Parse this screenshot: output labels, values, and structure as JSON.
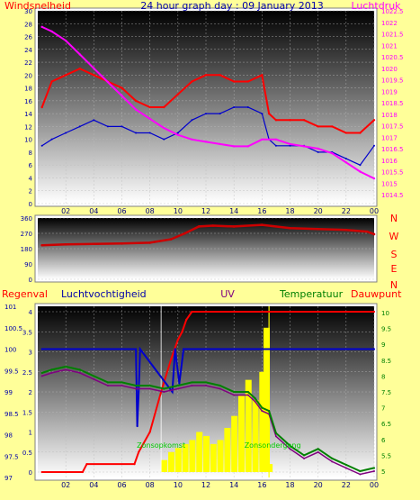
{
  "colors": {
    "background": "#ffff99",
    "windspeed": "#ff0000",
    "gust": "#0000cc",
    "pressure": "#ff00ff",
    "direction": "#cc0000",
    "rain": "#ff0000",
    "humidity": "#0000cc",
    "temperature": "#008000",
    "dewpoint": "#800080",
    "uv": "#ffff00",
    "title": "#0000aa"
  },
  "chart_data": [
    {
      "type": "line",
      "title": "24 hour graph day : 09 January 2013",
      "left_label": "Windsnelheid",
      "right_label": "Luchtdruk",
      "x_ticks": [
        "02",
        "04",
        "06",
        "08",
        "10",
        "12",
        "14",
        "16",
        "18",
        "20",
        "22",
        "00"
      ],
      "y_left_ticks": [
        "30",
        "28",
        "26",
        "24",
        "22",
        "20",
        "18",
        "16",
        "14",
        "12",
        "10",
        "8",
        "6",
        "4",
        "2",
        "0"
      ],
      "y_right_ticks": [
        "1022.5",
        "1022",
        "1021.5",
        "1021",
        "1020.5",
        "1020",
        "1019.5",
        "1019",
        "1018.5",
        "1018",
        "1017.5",
        "1017",
        "1016.5",
        "1016",
        "1015.5",
        "1015",
        "1014.5"
      ],
      "ylim_left": [
        0,
        30
      ],
      "ylim_right": [
        1014.5,
        1022.5
      ],
      "series": [
        {
          "key": "wind",
          "hours": [
            0.3,
            1,
            2,
            3,
            4,
            5,
            6,
            7,
            8,
            9,
            10,
            11,
            12,
            13,
            14,
            15,
            16,
            16.5,
            17,
            18,
            19,
            20,
            21,
            22,
            23,
            24
          ],
          "values": [
            15,
            19,
            20,
            21,
            20,
            19,
            18,
            16,
            15,
            15,
            17,
            19,
            20,
            20,
            19,
            19,
            20,
            14,
            13,
            13,
            13,
            12,
            12,
            11,
            11,
            13
          ]
        },
        {
          "key": "gust",
          "hours": [
            0.3,
            1,
            2,
            3,
            4,
            5,
            6,
            7,
            8,
            9,
            10,
            11,
            12,
            13,
            14,
            15,
            16,
            16.5,
            17,
            18,
            19,
            20,
            21,
            22,
            23,
            24
          ],
          "values": [
            9,
            10,
            11,
            12,
            13,
            12,
            12,
            11,
            11,
            10,
            11,
            13,
            14,
            14,
            15,
            15,
            14,
            10,
            9,
            9,
            9,
            8,
            8,
            7,
            6,
            9
          ]
        },
        {
          "key": "pressure",
          "hours": [
            0.3,
            1,
            2,
            3,
            4,
            5,
            6,
            7,
            8,
            9,
            10,
            11,
            12,
            13,
            14,
            15,
            16,
            17,
            18,
            19,
            20,
            21,
            22,
            23,
            24
          ],
          "values": [
            1021.8,
            1021.6,
            1021.2,
            1020.6,
            1020.0,
            1019.4,
            1018.8,
            1018.2,
            1017.8,
            1017.4,
            1017.1,
            1016.9,
            1016.8,
            1016.7,
            1016.6,
            1016.6,
            1016.9,
            1016.9,
            1016.7,
            1016.6,
            1016.5,
            1016.3,
            1015.9,
            1015.5,
            1015.2
          ]
        }
      ]
    },
    {
      "type": "line",
      "right_labels": [
        "N",
        "W",
        "S",
        "E",
        "N"
      ],
      "y_ticks": [
        "360",
        "270",
        "180",
        "90",
        "0"
      ],
      "ylim": [
        0,
        360
      ],
      "series": [
        {
          "key": "direction",
          "hours": [
            0.3,
            2,
            4,
            6,
            8,
            9.5,
            10.5,
            11.5,
            12.5,
            14,
            16,
            18,
            20,
            22,
            23.5,
            24
          ],
          "values": [
            200,
            205,
            208,
            210,
            215,
            235,
            270,
            310,
            315,
            310,
            320,
            300,
            295,
            290,
            280,
            265
          ]
        }
      ]
    },
    {
      "type": "line",
      "labels": {
        "rain": "Regenval",
        "humidity": "Luchtvochtigheid",
        "uv": "UV",
        "temperature": "Temperatuur",
        "dewpoint": "Dauwpunt"
      },
      "y_left_ticks": [
        "101",
        "100.5",
        "100",
        "99.5",
        "99",
        "98.5",
        "98",
        "97.5",
        "97"
      ],
      "y_rain_ticks": [
        "4",
        "3.5",
        "3",
        "2.5",
        "2",
        "1.5",
        "1",
        "0.5",
        "0"
      ],
      "y_right_ticks": [
        "10",
        "9.5",
        "9",
        "8.5",
        "8",
        "7.5",
        "7",
        "6.5",
        "6",
        "5.5",
        "5"
      ],
      "ylim_rain": [
        0,
        4
      ],
      "ylim_humidity": [
        97,
        101
      ],
      "ylim_temperature": [
        4.8,
        10.2
      ],
      "sunrise_label": "Zonsopkomst",
      "sunset_label": "Zonsondergang",
      "sunrise_hour": 8.8,
      "sunset_hour": 16.5,
      "series": [
        {
          "key": "rain",
          "hours": [
            0.3,
            3.2,
            3.5,
            6.9,
            7.2,
            8.0,
            8.8,
            9.5,
            10.0,
            10.3,
            10.6,
            11.0,
            24
          ],
          "values": [
            0,
            0,
            0.2,
            0.2,
            0.5,
            1.0,
            2.0,
            2.8,
            3.3,
            3.5,
            3.8,
            4.0,
            4.0
          ]
        },
        {
          "key": "humidity",
          "hours": [
            0.3,
            7.0,
            7.1,
            7.2,
            7.3,
            9.6,
            9.8,
            10.1,
            10.4,
            10.6,
            24
          ],
          "values": [
            100,
            100,
            98.2,
            99,
            100,
            99,
            100,
            99.2,
            100,
            100,
            100
          ]
        },
        {
          "key": "temperature",
          "hours": [
            0.3,
            1,
            2,
            3,
            4,
            5,
            6,
            7,
            8,
            9,
            10,
            11,
            12,
            13,
            14,
            15,
            15.5,
            16,
            16.5,
            17,
            18,
            19,
            20,
            21,
            22,
            23,
            24
          ],
          "values": [
            8.1,
            8.2,
            8.3,
            8.2,
            8.0,
            7.8,
            7.8,
            7.7,
            7.7,
            7.6,
            7.7,
            7.8,
            7.8,
            7.7,
            7.5,
            7.5,
            7.3,
            7.0,
            6.9,
            6.2,
            5.8,
            5.5,
            5.7,
            5.4,
            5.2,
            5.0,
            5.1
          ]
        },
        {
          "key": "dewpoint",
          "hours": [
            0.3,
            1,
            2,
            3,
            4,
            5,
            6,
            7,
            8,
            9,
            10,
            11,
            12,
            13,
            14,
            15,
            15.5,
            16,
            16.5,
            17,
            18,
            19,
            20,
            21,
            22,
            23,
            24
          ],
          "values": [
            8.0,
            8.1,
            8.2,
            8.1,
            7.9,
            7.7,
            7.7,
            7.6,
            7.6,
            7.5,
            7.6,
            7.7,
            7.7,
            7.6,
            7.4,
            7.4,
            7.2,
            6.9,
            6.8,
            6.1,
            5.7,
            5.4,
            5.6,
            5.3,
            5.1,
            4.9,
            5.0
          ]
        },
        {
          "key": "uv",
          "hours": [
            9,
            9.5,
            10,
            10.5,
            11,
            11.5,
            12,
            12.5,
            13,
            13.5,
            14,
            14.5,
            15,
            15.5,
            16,
            16.3,
            16.5
          ],
          "values": [
            0.3,
            0.5,
            0.6,
            0.7,
            0.8,
            1.0,
            0.9,
            0.7,
            0.8,
            1.1,
            1.4,
            1.9,
            2.3,
            1.8,
            2.5,
            3.6,
            0.2
          ]
        }
      ]
    }
  ]
}
